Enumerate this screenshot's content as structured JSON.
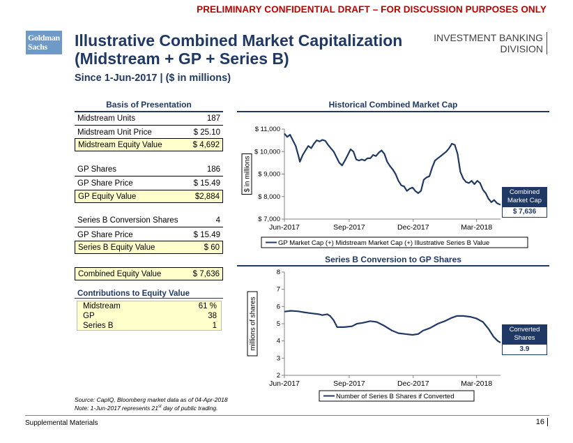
{
  "banner": "PRELIMINARY CONFIDENTIAL DRAFT – FOR DISCUSSION PURPOSES ONLY",
  "logo": {
    "line1": "Goldman",
    "line2": "Sachs"
  },
  "title": {
    "line1": "Illustrative Combined Market Capitalization",
    "line2": "(Midstream + GP + Series B)"
  },
  "subtitle": "Since 1-Jun-2017 | ($ in millions)",
  "division": {
    "line1": "INVESTMENT BANKING",
    "line2": "DIVISION"
  },
  "basis": {
    "header": "Basis of Presentation",
    "rows": [
      {
        "label": "Midstream Units",
        "value": "187"
      },
      {
        "label": "Midstream Unit Price",
        "value": "$ 25.10"
      },
      {
        "label": "Midstream Equity Value",
        "value": "$ 4,692"
      },
      {
        "label": "GP Shares",
        "value": "186"
      },
      {
        "label": "GP Share Price",
        "value": "$ 15.49"
      },
      {
        "label": "GP Equity Value",
        "value": "$2,884"
      },
      {
        "label": "Series B Conversion Shares",
        "value": "4"
      },
      {
        "label": "GP Share Price",
        "value": "$ 15.49"
      },
      {
        "label": "Series B Equity Value",
        "value": "$ 60"
      },
      {
        "label": "Combined Equity Value",
        "value": "$ 7,636"
      }
    ],
    "contributions_header": "Contributions to Equity Value",
    "contributions": [
      {
        "label": "Midstream",
        "value": "61 %"
      },
      {
        "label": "GP",
        "value": "38"
      },
      {
        "label": "Series B",
        "value": "1"
      }
    ]
  },
  "chart1_header": "Historical Combined Market Cap",
  "chart2_header": "Series B Conversion to GP Shares",
  "callout1": {
    "label_line1": "Combined",
    "label_line2": "Market Cap",
    "value": "$ 7,636"
  },
  "callout2": {
    "label_line1": "Converted",
    "label_line2": "Shares",
    "value": "3.9"
  },
  "notes": {
    "source": "Source: CapIQ, Bloomberg market data as of 04-Apr-2018",
    "note_pre": "Note: 1-Jun-2017 represents 21",
    "note_sup": "st",
    "note_post": " day of public trading."
  },
  "footer": {
    "left": "Supplemental Materials",
    "page": "16"
  },
  "colors": {
    "navy": "#1f3864",
    "highlight": "#ffffcc",
    "banner_red": "#c00000"
  },
  "chart_data": [
    {
      "type": "line",
      "title": "Historical Combined Market Cap",
      "ylabel": "$ in millions",
      "ylim": [
        7000,
        11000
      ],
      "yticks": [
        7000,
        8000,
        9000,
        10000,
        11000
      ],
      "ytick_labels": [
        "$ 7,000",
        "$ 8,000",
        "$ 9,000",
        "$ 10,000",
        "$ 11,000"
      ],
      "xlim": [
        "2017-06-01",
        "2018-04-04"
      ],
      "xticks": [
        "2017-06-01",
        "2017-09-01",
        "2017-12-01",
        "2018-03-01"
      ],
      "xtick_labels": [
        "Jun-2017",
        "Sep-2017",
        "Dec-2017",
        "Mar-2018"
      ],
      "legend_position": "bottom",
      "grid": false,
      "series": [
        {
          "name": "GP Market Cap (+) Midstream Market Cap (+) Illustrative Series B Value",
          "color": "#1f3864",
          "points": [
            [
              "2017-06-01",
              10800
            ],
            [
              "2017-06-05",
              10650
            ],
            [
              "2017-06-09",
              10750
            ],
            [
              "2017-06-13",
              10500
            ],
            [
              "2017-06-17",
              10250
            ],
            [
              "2017-06-21",
              9800
            ],
            [
              "2017-06-23",
              9550
            ],
            [
              "2017-06-27",
              9850
            ],
            [
              "2017-07-01",
              10050
            ],
            [
              "2017-07-05",
              10250
            ],
            [
              "2017-07-09",
              10150
            ],
            [
              "2017-07-13",
              10350
            ],
            [
              "2017-07-17",
              10500
            ],
            [
              "2017-07-21",
              10450
            ],
            [
              "2017-07-25",
              10520
            ],
            [
              "2017-07-29",
              10480
            ],
            [
              "2017-08-02",
              10300
            ],
            [
              "2017-08-06",
              10150
            ],
            [
              "2017-08-10",
              10000
            ],
            [
              "2017-08-14",
              9750
            ],
            [
              "2017-08-18",
              9500
            ],
            [
              "2017-08-22",
              9380
            ],
            [
              "2017-08-26",
              9600
            ],
            [
              "2017-08-30",
              9850
            ],
            [
              "2017-09-03",
              10100
            ],
            [
              "2017-09-07",
              10000
            ],
            [
              "2017-09-11",
              9650
            ],
            [
              "2017-09-15",
              9600
            ],
            [
              "2017-09-19",
              9650
            ],
            [
              "2017-09-23",
              9600
            ],
            [
              "2017-09-27",
              9700
            ],
            [
              "2017-10-01",
              9700
            ],
            [
              "2017-10-05",
              9850
            ],
            [
              "2017-10-09",
              9800
            ],
            [
              "2017-10-13",
              9950
            ],
            [
              "2017-10-17",
              10050
            ],
            [
              "2017-10-21",
              9900
            ],
            [
              "2017-10-25",
              9550
            ],
            [
              "2017-10-29",
              9350
            ],
            [
              "2017-11-02",
              9200
            ],
            [
              "2017-11-06",
              9000
            ],
            [
              "2017-11-10",
              8700
            ],
            [
              "2017-11-14",
              8500
            ],
            [
              "2017-11-18",
              8450
            ],
            [
              "2017-11-22",
              8250
            ],
            [
              "2017-11-26",
              8350
            ],
            [
              "2017-11-30",
              8400
            ],
            [
              "2017-12-04",
              8250
            ],
            [
              "2017-12-08",
              8150
            ],
            [
              "2017-12-12",
              8250
            ],
            [
              "2017-12-16",
              8750
            ],
            [
              "2017-12-20",
              8850
            ],
            [
              "2017-12-24",
              8900
            ],
            [
              "2017-12-28",
              9300
            ],
            [
              "2018-01-01",
              9600
            ],
            [
              "2018-01-05",
              9700
            ],
            [
              "2018-01-09",
              9800
            ],
            [
              "2018-01-13",
              9900
            ],
            [
              "2018-01-17",
              10000
            ],
            [
              "2018-01-21",
              10150
            ],
            [
              "2018-01-25",
              10350
            ],
            [
              "2018-01-29",
              10300
            ],
            [
              "2018-02-02",
              9900
            ],
            [
              "2018-02-06",
              9100
            ],
            [
              "2018-02-10",
              8800
            ],
            [
              "2018-02-14",
              8650
            ],
            [
              "2018-02-18",
              8600
            ],
            [
              "2018-02-22",
              8700
            ],
            [
              "2018-02-26",
              8550
            ],
            [
              "2018-03-02",
              8700
            ],
            [
              "2018-03-06",
              8600
            ],
            [
              "2018-03-10",
              8300
            ],
            [
              "2018-03-14",
              8150
            ],
            [
              "2018-03-18",
              7900
            ],
            [
              "2018-03-22",
              7750
            ],
            [
              "2018-03-26",
              7850
            ],
            [
              "2018-03-30",
              7700
            ],
            [
              "2018-04-04",
              7636
            ]
          ]
        }
      ]
    },
    {
      "type": "line",
      "title": "Series B Conversion to GP Shares",
      "ylabel": "millions of shares",
      "ylim": [
        2,
        8
      ],
      "yticks": [
        2,
        3,
        4,
        5,
        6,
        7,
        8
      ],
      "ytick_labels": [
        "2",
        "3",
        "4",
        "5",
        "6",
        "7",
        "8"
      ],
      "xlim": [
        "2017-06-01",
        "2018-04-04"
      ],
      "xticks": [
        "2017-06-01",
        "2017-09-01",
        "2017-12-01",
        "2018-03-01"
      ],
      "xtick_labels": [
        "Jun-2017",
        "Sep-2017",
        "Dec-2017",
        "Mar-2018"
      ],
      "legend_position": "bottom",
      "grid": false,
      "series": [
        {
          "name": "Number of Series B Shares if Converted",
          "color": "#1f3864",
          "points": [
            [
              "2017-06-01",
              5.7
            ],
            [
              "2017-06-10",
              5.75
            ],
            [
              "2017-06-20",
              5.72
            ],
            [
              "2017-07-01",
              5.65
            ],
            [
              "2017-07-10",
              5.6
            ],
            [
              "2017-07-20",
              5.55
            ],
            [
              "2017-07-25",
              5.5
            ],
            [
              "2017-08-01",
              5.55
            ],
            [
              "2017-08-05",
              5.45
            ],
            [
              "2017-08-10",
              5.2
            ],
            [
              "2017-08-15",
              4.8
            ],
            [
              "2017-08-25",
              4.8
            ],
            [
              "2017-09-05",
              4.85
            ],
            [
              "2017-09-12",
              5.0
            ],
            [
              "2017-09-20",
              5.05
            ],
            [
              "2017-10-01",
              5.15
            ],
            [
              "2017-10-10",
              5.1
            ],
            [
              "2017-10-20",
              4.9
            ],
            [
              "2017-11-01",
              4.6
            ],
            [
              "2017-11-10",
              4.45
            ],
            [
              "2017-11-20",
              4.4
            ],
            [
              "2017-11-30",
              4.35
            ],
            [
              "2017-12-08",
              4.4
            ],
            [
              "2017-12-15",
              4.6
            ],
            [
              "2017-12-25",
              4.75
            ],
            [
              "2018-01-05",
              5.0
            ],
            [
              "2018-01-15",
              5.15
            ],
            [
              "2018-01-25",
              5.35
            ],
            [
              "2018-02-01",
              5.45
            ],
            [
              "2018-02-10",
              5.45
            ],
            [
              "2018-02-20",
              5.4
            ],
            [
              "2018-03-01",
              5.3
            ],
            [
              "2018-03-10",
              5.1
            ],
            [
              "2018-03-18",
              4.7
            ],
            [
              "2018-03-25",
              4.25
            ],
            [
              "2018-03-31",
              4.0
            ],
            [
              "2018-04-04",
              3.9
            ]
          ]
        }
      ]
    }
  ]
}
